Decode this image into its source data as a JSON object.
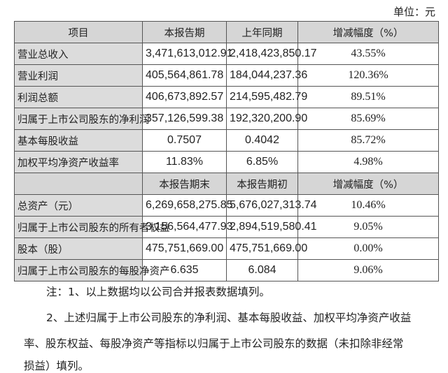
{
  "unit": "单位：元",
  "header1": [
    "项目",
    "本报告期",
    "上年同期",
    "增减幅度（%）"
  ],
  "rows1": [
    [
      "营业总收入",
      "3,471,613,012.91",
      "2,418,423,850.17",
      "43.55%"
    ],
    [
      "营业利润",
      "405,564,861.78",
      "184,044,237.36",
      "120.36%"
    ],
    [
      "利润总额",
      "406,673,892.57",
      "214,595,482.79",
      "89.51%"
    ],
    [
      "归属于上市公司股东的净利润",
      "357,126,599.38",
      "192,320,200.90",
      "85.69%"
    ],
    [
      "基本每股收益",
      "0.7507",
      "0.4042",
      "85.72%"
    ],
    [
      "加权平均净资产收益率",
      "11.83%",
      "6.85%",
      "4.98%"
    ]
  ],
  "header2": [
    "",
    "本报告期末",
    "本报告期初",
    "增减幅度（%）"
  ],
  "rows2": [
    [
      "总资产（元）",
      "6,269,658,275.85",
      "5,676,027,313.74",
      "10.46%"
    ],
    [
      "归属于上市公司股东的所有者权益",
      "3,156,564,477.93",
      "2,894,519,580.41",
      "9.05%"
    ],
    [
      "股本（股）",
      "475,751,669.00",
      "475,751,669.00",
      "0.00%"
    ],
    [
      "归属于上市公司股东的每股净资产",
      "6.635",
      "6.084",
      "9.06%"
    ]
  ],
  "notes": {
    "n1": "注：1、以上数据均以公司合并报表数据填列。",
    "n2a": "2、上述归属于上市公司股东的净利润、基本每股收益、加权平均净资产收益",
    "n2b": "率、股东权益、每股净资产等指标以归属于上市公司股东的数据（未扣除非经常",
    "n2c": "损益）填列。"
  }
}
